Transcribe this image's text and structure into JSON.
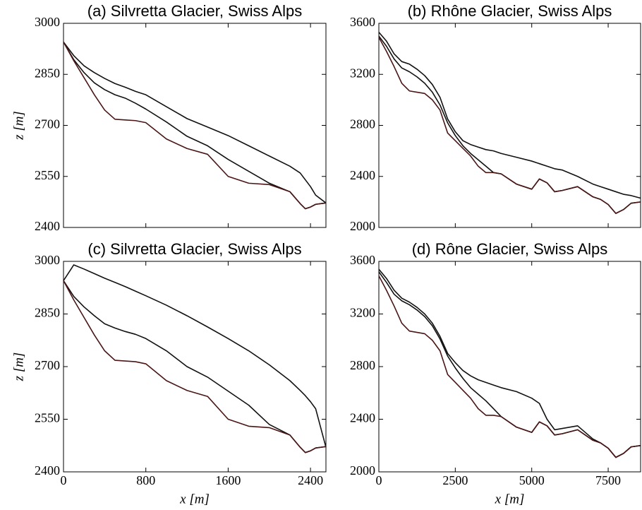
{
  "chart_data": [
    {
      "type": "line",
      "title": "(a) Silvretta Glacier, Swiss Alps",
      "ylabel": "z [m]",
      "x": [
        0,
        100,
        200,
        300,
        400,
        500,
        600,
        700,
        800,
        1000,
        1200,
        1400,
        1600,
        1800,
        2000,
        2200,
        2300,
        2350,
        2400,
        2450,
        2550
      ],
      "xlim": [
        0,
        2550
      ],
      "xticks": [
        0,
        800,
        1600,
        2400
      ],
      "show_xtick_labels": false,
      "ylim": [
        2400,
        3000
      ],
      "yticks": [
        2400,
        2550,
        2700,
        2850,
        3000
      ],
      "series": [
        {
          "color": "#111111",
          "values": [
            2945,
            2905,
            2875,
            2855,
            2838,
            2823,
            2812,
            2800,
            2790,
            2755,
            2720,
            2695,
            2670,
            2640,
            2610,
            2580,
            2560,
            2540,
            2520,
            2495,
            2472
          ]
        },
        {
          "color": "#111111",
          "values": [
            2945,
            2893,
            2855,
            2825,
            2805,
            2790,
            2780,
            2765,
            2748,
            2710,
            2668,
            2640,
            2600,
            2565,
            2530,
            2505,
            2470,
            2455,
            2460,
            2468,
            2472
          ]
        },
        {
          "color": "#4a1515",
          "values": [
            2945,
            2890,
            2840,
            2790,
            2745,
            2718,
            2716,
            2714,
            2708,
            2660,
            2632,
            2615,
            2550,
            2530,
            2526,
            2505,
            2470,
            2455,
            2460,
            2468,
            2472
          ]
        }
      ]
    },
    {
      "type": "line",
      "title": "(b) Rhône Glacier, Swiss Alps",
      "x": [
        0,
        250,
        500,
        750,
        1000,
        1250,
        1500,
        1750,
        2000,
        2250,
        2500,
        2750,
        3000,
        3250,
        3500,
        3750,
        4000,
        4500,
        5000,
        5250,
        5500,
        5750,
        6000,
        6500,
        7000,
        7250,
        7500,
        7750,
        8000,
        8250,
        8560
      ],
      "xlim": [
        0,
        8560
      ],
      "xticks": [
        0,
        2500,
        5000,
        7500
      ],
      "show_xtick_labels": false,
      "ylim": [
        2000,
        3600
      ],
      "yticks": [
        2000,
        2400,
        2800,
        3200,
        3600
      ],
      "series": [
        {
          "color": "#111111",
          "values": [
            3530,
            3460,
            3360,
            3300,
            3280,
            3240,
            3190,
            3120,
            3020,
            2850,
            2750,
            2680,
            2650,
            2630,
            2610,
            2600,
            2580,
            2550,
            2520,
            2500,
            2480,
            2460,
            2450,
            2400,
            2340,
            2320,
            2300,
            2280,
            2260,
            2250,
            2230
          ]
        },
        {
          "color": "#111111",
          "values": [
            3500,
            3420,
            3320,
            3250,
            3220,
            3180,
            3130,
            3060,
            2960,
            2820,
            2720,
            2640,
            2580,
            2530,
            2480,
            2430,
            2420,
            2340,
            2300,
            2380,
            2350,
            2280,
            2290,
            2320,
            2240,
            2220,
            2180,
            2110,
            2140,
            2190,
            2200
          ]
        },
        {
          "color": "#4a1515",
          "values": [
            3490,
            3380,
            3260,
            3130,
            3070,
            3060,
            3050,
            3000,
            2920,
            2740,
            2680,
            2620,
            2560,
            2480,
            2430,
            2430,
            2420,
            2340,
            2300,
            2380,
            2350,
            2280,
            2290,
            2320,
            2240,
            2220,
            2180,
            2110,
            2140,
            2190,
            2200
          ]
        }
      ]
    },
    {
      "type": "line",
      "title": "(c) Silvretta Glacier, Swiss Alps",
      "ylabel": "z [m]",
      "xlabel": "x [m]",
      "x": [
        0,
        100,
        200,
        300,
        400,
        500,
        600,
        700,
        800,
        1000,
        1200,
        1400,
        1600,
        1800,
        2000,
        2200,
        2300,
        2350,
        2400,
        2450,
        2550
      ],
      "xlim": [
        0,
        2550
      ],
      "xticks": [
        0,
        800,
        1600,
        2400
      ],
      "show_xtick_labels": true,
      "ylim": [
        2400,
        3000
      ],
      "yticks": [
        2400,
        2550,
        2700,
        2850,
        3000
      ],
      "series": [
        {
          "color": "#111111",
          "values": [
            2945,
            2990,
            2978,
            2965,
            2952,
            2940,
            2928,
            2915,
            2902,
            2875,
            2845,
            2813,
            2780,
            2745,
            2705,
            2660,
            2632,
            2617,
            2600,
            2580,
            2470
          ]
        },
        {
          "color": "#111111",
          "values": [
            2945,
            2900,
            2870,
            2845,
            2822,
            2810,
            2800,
            2792,
            2780,
            2745,
            2700,
            2670,
            2630,
            2590,
            2535,
            2505,
            2470,
            2455,
            2460,
            2468,
            2472
          ]
        },
        {
          "color": "#4a1515",
          "values": [
            2945,
            2890,
            2840,
            2790,
            2745,
            2718,
            2716,
            2714,
            2708,
            2660,
            2632,
            2615,
            2550,
            2530,
            2526,
            2505,
            2470,
            2455,
            2460,
            2468,
            2472
          ]
        }
      ]
    },
    {
      "type": "line",
      "title": "(d) Rône Glacier, Swiss Alps",
      "xlabel": "x [m]",
      "x": [
        0,
        250,
        500,
        750,
        1000,
        1250,
        1500,
        1750,
        2000,
        2250,
        2500,
        2750,
        3000,
        3250,
        3500,
        3750,
        4000,
        4500,
        5000,
        5250,
        5500,
        5750,
        6000,
        6500,
        7000,
        7250,
        7500,
        7750,
        8000,
        8250,
        8560
      ],
      "xlim": [
        0,
        8560
      ],
      "xticks": [
        0,
        2500,
        5000,
        7500
      ],
      "show_xtick_labels": true,
      "ylim": [
        2000,
        3600
      ],
      "yticks": [
        2000,
        2400,
        2800,
        3200,
        3600
      ],
      "series": [
        {
          "color": "#111111",
          "values": [
            3540,
            3470,
            3380,
            3320,
            3290,
            3250,
            3200,
            3130,
            3030,
            2900,
            2830,
            2770,
            2730,
            2700,
            2680,
            2660,
            2640,
            2610,
            2560,
            2520,
            2400,
            2320,
            2330,
            2350,
            2250,
            2220,
            2180,
            2110,
            2140,
            2190,
            2200
          ]
        },
        {
          "color": "#111111",
          "values": [
            3520,
            3440,
            3350,
            3300,
            3270,
            3230,
            3180,
            3110,
            3010,
            2880,
            2790,
            2710,
            2640,
            2590,
            2540,
            2480,
            2420,
            2340,
            2300,
            2380,
            2350,
            2280,
            2290,
            2320,
            2240,
            2220,
            2180,
            2110,
            2140,
            2190,
            2200
          ]
        },
        {
          "color": "#4a1515",
          "values": [
            3490,
            3380,
            3260,
            3130,
            3070,
            3060,
            3050,
            3000,
            2920,
            2740,
            2680,
            2620,
            2560,
            2480,
            2430,
            2430,
            2420,
            2340,
            2300,
            2380,
            2350,
            2280,
            2290,
            2320,
            2240,
            2220,
            2180,
            2110,
            2140,
            2190,
            2200
          ]
        }
      ]
    }
  ]
}
